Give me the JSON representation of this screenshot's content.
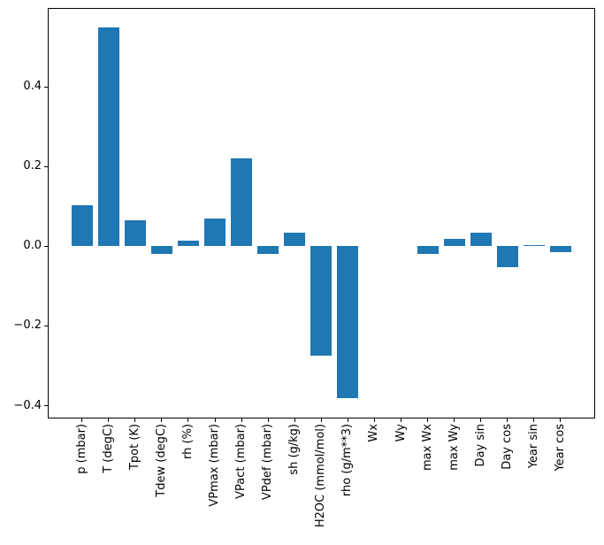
{
  "chart_data": {
    "type": "bar",
    "categories": [
      "p (mbar)",
      "T (degC)",
      "Tpot (K)",
      "Tdew (degC)",
      "rh (%)",
      "VPmax (mbar)",
      "VPact (mbar)",
      "VPdef (mbar)",
      "sh (g/kg)",
      "H2OC (mmol/mol)",
      "rho (g/m**3)",
      "Wx",
      "Wy",
      "max Wx",
      "max Wy",
      "Day sin",
      "Day cos",
      "Year sin",
      "Year cos"
    ],
    "values": [
      0.102,
      0.55,
      0.066,
      -0.019,
      0.014,
      0.07,
      0.221,
      -0.019,
      0.034,
      -0.275,
      -0.38,
      0.0,
      0.0,
      -0.019,
      0.018,
      0.034,
      -0.052,
      0.002,
      -0.015
    ],
    "bar_color": "#1f77b4",
    "ylim": [
      -0.432,
      0.598
    ],
    "yticks": [
      0.4,
      0.2,
      0.0,
      -0.2,
      -0.4
    ],
    "ytick_labels": [
      "0.4",
      "0.2",
      "0.0",
      "−0.2",
      "−0.4"
    ],
    "grid": false,
    "legend": null
  }
}
